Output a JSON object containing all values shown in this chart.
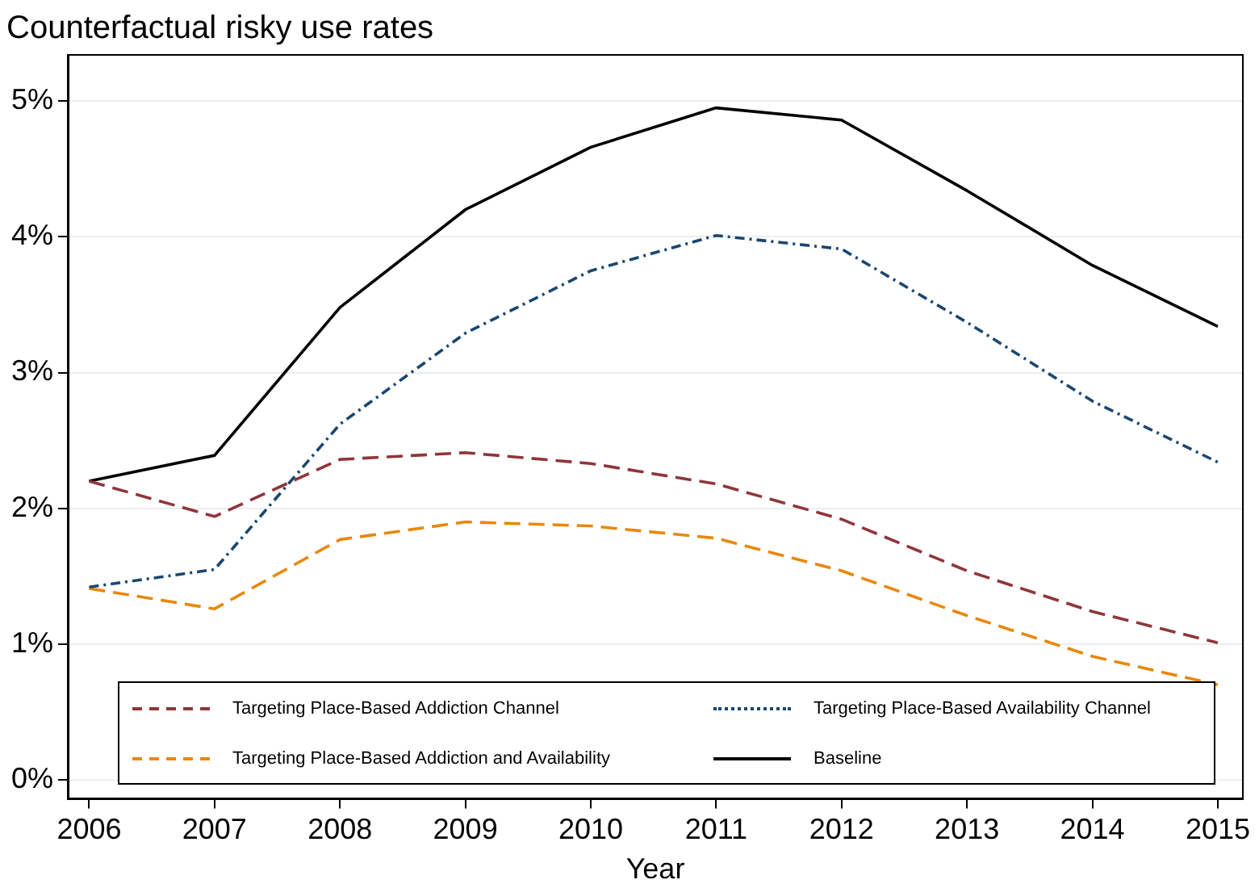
{
  "chart_data": {
    "type": "line",
    "title": "Counterfactual risky use rates",
    "xlabel": "Year",
    "x": [
      2006,
      2007,
      2008,
      2009,
      2010,
      2011,
      2012,
      2013,
      2014,
      2015
    ],
    "xlim": [
      2005.83,
      2015.2
    ],
    "xticks": [
      2006,
      2007,
      2008,
      2009,
      2010,
      2011,
      2012,
      2013,
      2014,
      2015
    ],
    "ylim": [
      -0.14,
      5.34
    ],
    "yticks": [
      {
        "value": 0,
        "label": "0%"
      },
      {
        "value": 1,
        "label": "1%"
      },
      {
        "value": 2,
        "label": "2%"
      },
      {
        "value": 3,
        "label": "3%"
      },
      {
        "value": 4,
        "label": "4%"
      },
      {
        "value": 5,
        "label": "5%"
      }
    ],
    "grid": "y",
    "legend": "bottom",
    "marker": "none",
    "series": [
      {
        "name": "Targeting Place-Based Addiction Channel",
        "color": "#90353b",
        "line_style": "dashed",
        "values": [
          2.2,
          1.94,
          2.36,
          2.41,
          2.33,
          2.18,
          1.92,
          1.54,
          1.24,
          1.01
        ]
      },
      {
        "name": "Targeting Place-Based Availability Channel",
        "color": "#1a476f",
        "line_style": "dotted",
        "values": [
          1.42,
          1.55,
          2.62,
          3.29,
          3.75,
          4.01,
          3.91,
          3.37,
          2.79,
          2.34
        ]
      },
      {
        "name": "Targeting Place-Based Addiction and Availability",
        "color": "#e8880c",
        "line_style": "dashed",
        "values": [
          1.41,
          1.26,
          1.77,
          1.9,
          1.87,
          1.78,
          1.54,
          1.21,
          0.91,
          0.7
        ]
      },
      {
        "name": "Baseline",
        "color": "#000000",
        "line_style": "solid",
        "values": [
          2.2,
          2.39,
          3.48,
          4.2,
          4.66,
          4.95,
          4.86,
          4.34,
          3.79,
          3.34
        ]
      }
    ]
  }
}
